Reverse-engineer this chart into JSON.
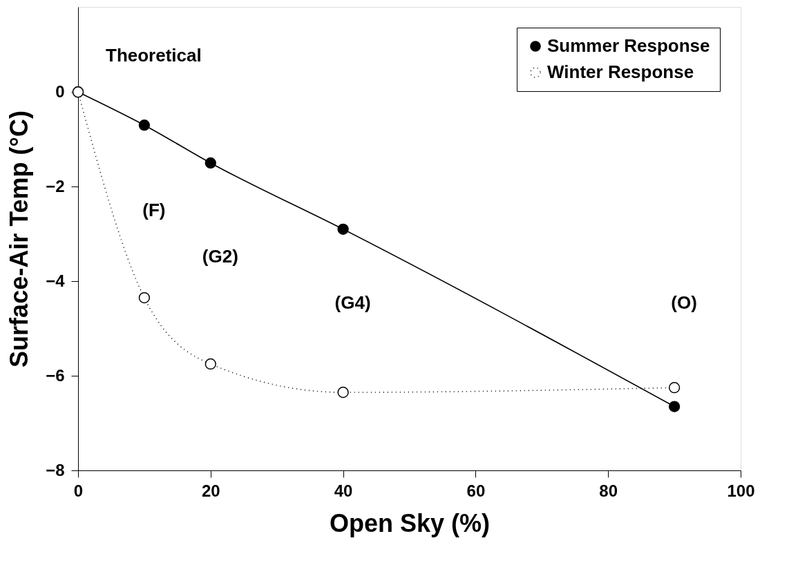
{
  "chart_data": {
    "type": "line",
    "xlabel": "Open Sky (%)",
    "ylabel": "Surface-Air Temp (°C)",
    "xlim": [
      0,
      100
    ],
    "xticks": [
      0,
      20,
      40,
      60,
      80,
      100
    ],
    "ylim": [
      -8,
      1.8
    ],
    "yticks": [
      -8,
      -6,
      -4,
      -2,
      0
    ],
    "grid": false,
    "legend": "top right",
    "marker": "circle",
    "series": [
      {
        "name": "Summer Response",
        "color": "#000000",
        "line_style": "solid",
        "x": [
          0,
          10,
          20,
          40,
          90
        ],
        "values": [
          0,
          -0.7,
          -1.5,
          -2.9,
          -6.65
        ]
      },
      {
        "name": "Winter Response",
        "color": "#ffffff",
        "line_style": "dotted",
        "x": [
          0,
          10,
          20,
          40,
          90
        ],
        "values": [
          0,
          -4.35,
          -5.75,
          -6.35,
          -6.25
        ]
      }
    ],
    "annotations": [
      {
        "text": "Theoretical",
        "x": 0,
        "y": 0
      },
      "(F)",
      "(G2)",
      "(G4)",
      "(O)"
    ]
  }
}
